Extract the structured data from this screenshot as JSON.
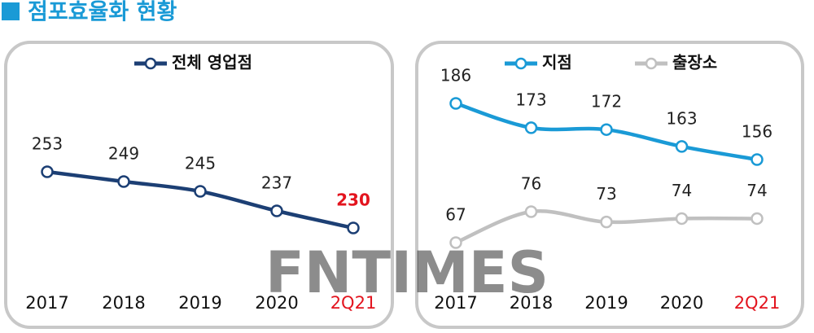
{
  "title": "점포효율화 현황",
  "watermark": "FNTIMES",
  "chart_data": [
    {
      "type": "line",
      "categories": [
        "2017",
        "2018",
        "2019",
        "2020",
        "2Q21"
      ],
      "series": [
        {
          "name": "전체 영업점",
          "color": "#1c3f74",
          "values": [
            253,
            249,
            245,
            237,
            230
          ]
        }
      ],
      "highlight_color": "#e3141e",
      "highlight_last_value_label": true
    },
    {
      "type": "line",
      "categories": [
        "2017",
        "2018",
        "2019",
        "2020",
        "2Q21"
      ],
      "series": [
        {
          "name": "지점",
          "color": "#1a9ad6",
          "values": [
            186,
            173,
            172,
            163,
            156
          ]
        },
        {
          "name": "출장소",
          "color": "#c0c0c0",
          "values": [
            67,
            76,
            73,
            74,
            74
          ]
        }
      ],
      "highlight_color": "#e3141e",
      "highlight_last_value_label": false
    }
  ]
}
